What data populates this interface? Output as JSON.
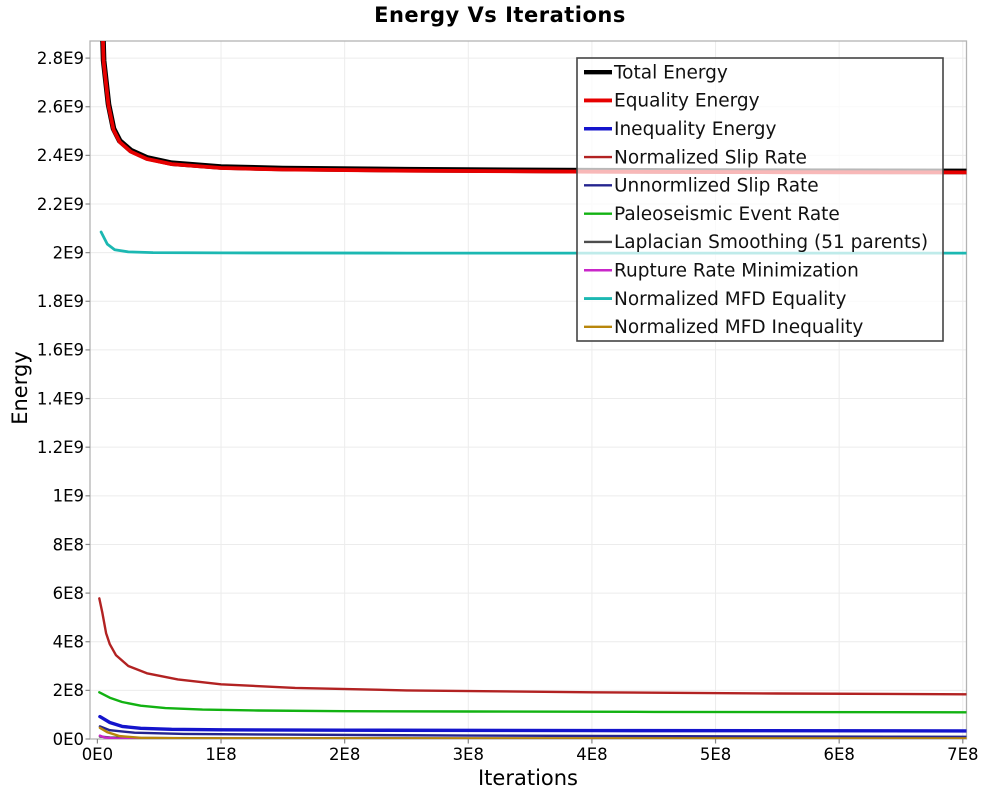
{
  "chart_data": {
    "type": "line",
    "title": "Energy Vs Iterations",
    "xlabel": "Iterations",
    "ylabel": "Energy",
    "xlim": [
      0,
      705000000
    ],
    "ylim": [
      0,
      2870000000
    ],
    "grid": true,
    "grid_color": "#ececec",
    "axis_border_color": "#b3b3b3",
    "tick_color": "#888888",
    "tick_label_color": "#000000",
    "legend": {
      "position": "top-right-inside",
      "border_color": "#444444",
      "background": "rgba(255,255,255,0.72)",
      "text_color": "#111111"
    },
    "x_ticks": [
      {
        "value": 0,
        "label": "0E0"
      },
      {
        "value": 100000000.0,
        "label": "1E8"
      },
      {
        "value": 200000000.0,
        "label": "2E8"
      },
      {
        "value": 300000000.0,
        "label": "3E8"
      },
      {
        "value": 400000000.0,
        "label": "4E8"
      },
      {
        "value": 500000000.0,
        "label": "5E8"
      },
      {
        "value": 600000000.0,
        "label": "6E8"
      },
      {
        "value": 700000000.0,
        "label": "7E8"
      }
    ],
    "y_ticks": [
      {
        "value": 0,
        "label": "0E0"
      },
      {
        "value": 200000000.0,
        "label": "2E8"
      },
      {
        "value": 400000000.0,
        "label": "4E8"
      },
      {
        "value": 600000000.0,
        "label": "6E8"
      },
      {
        "value": 800000000.0,
        "label": "8E8"
      },
      {
        "value": 1000000000.0,
        "label": "1E9"
      },
      {
        "value": 1200000000.0,
        "label": "1.2E9"
      },
      {
        "value": 1400000000.0,
        "label": "1.4E9"
      },
      {
        "value": 1600000000.0,
        "label": "1.6E9"
      },
      {
        "value": 1800000000.0,
        "label": "1.8E9"
      },
      {
        "value": 2000000000.0,
        "label": "2E9"
      },
      {
        "value": 2200000000.0,
        "label": "2.2E9"
      },
      {
        "value": 2400000000.0,
        "label": "2.4E9"
      },
      {
        "value": 2600000000.0,
        "label": "2.6E9"
      },
      {
        "value": 2800000000.0,
        "label": "2.8E9"
      }
    ],
    "series": [
      {
        "name": "Total Energy",
        "color": "#000000",
        "line_width": 5.6,
        "x": [
          2000000.0,
          5000000.0,
          9000000.0,
          13000000.0,
          18000000.0,
          27000000.0,
          40000000.0,
          60000000.0,
          100000000.0,
          150000000.0,
          250000000.0,
          400000000.0,
          550000000.0,
          705000000.0
        ],
        "y": [
          3300000000.0,
          2790000000.0,
          2610000000.0,
          2510000000.0,
          2460000000.0,
          2420000000.0,
          2390000000.0,
          2368000000.0,
          2352000000.0,
          2346000000.0,
          2341000000.0,
          2337000000.0,
          2335000000.0,
          2334000000.0
        ]
      },
      {
        "name": "Equality Energy",
        "color": "#e60000",
        "line_width": 3.8,
        "x": [
          2000000.0,
          5000000.0,
          9000000.0,
          13000000.0,
          18000000.0,
          27000000.0,
          40000000.0,
          60000000.0,
          100000000.0,
          150000000.0,
          250000000.0,
          400000000.0,
          550000000.0,
          705000000.0
        ],
        "y": [
          3290000000.0,
          2785000000.0,
          2605000000.0,
          2505000000.0,
          2455000000.0,
          2415000000.0,
          2385000000.0,
          2364000000.0,
          2348000000.0,
          2342000000.0,
          2337000000.0,
          2333000000.0,
          2331000000.0,
          2330000000.0
        ]
      },
      {
        "name": "Inequality Energy",
        "color": "#1414cc",
        "line_width": 3.4,
        "x": [
          2000000.0,
          10000000.0,
          20000000.0,
          35000000.0,
          60000000.0,
          100000000.0,
          200000000.0,
          400000000.0,
          705000000.0
        ],
        "y": [
          92000000.0,
          68000000.0,
          52000000.0,
          44000000.0,
          40000000.0,
          38000000.0,
          36000000.0,
          34500000.0,
          33500000.0
        ]
      },
      {
        "name": "Normalized Slip Rate",
        "color": "#b22222",
        "line_width": 2.4,
        "x": [
          1500000.0,
          4000000.0,
          7000000.0,
          10000000.0,
          15000000.0,
          25000000.0,
          40000000.0,
          65000000.0,
          100000000.0,
          160000000.0,
          250000000.0,
          400000000.0,
          550000000.0,
          705000000.0
        ],
        "y": [
          578000000.0,
          520000000.0,
          435000000.0,
          390000000.0,
          345000000.0,
          300000000.0,
          270000000.0,
          245000000.0,
          225000000.0,
          210000000.0,
          200000000.0,
          192000000.0,
          187000000.0,
          184000000.0
        ]
      },
      {
        "name": "Unnormlized Slip Rate",
        "color": "#24248f",
        "line_width": 2.4,
        "x": [
          2000000.0,
          10000000.0,
          30000000.0,
          70000000.0,
          150000000.0,
          300000000.0,
          500000000.0,
          705000000.0
        ],
        "y": [
          52000000.0,
          36000000.0,
          26000000.0,
          21000000.0,
          18000000.0,
          14000000.0,
          11000000.0,
          9000000.0
        ]
      },
      {
        "name": "Paleoseismic Event Rate",
        "color": "#12b212",
        "line_width": 2.4,
        "x": [
          1500000.0,
          10000000.0,
          20000000.0,
          35000000.0,
          55000000.0,
          85000000.0,
          130000000.0,
          200000000.0,
          300000000.0,
          450000000.0,
          705000000.0
        ],
        "y": [
          192000000.0,
          170000000.0,
          152000000.0,
          137000000.0,
          127000000.0,
          121000000.0,
          117000000.0,
          114500000.0,
          113000000.0,
          111500000.0,
          110000000.0
        ]
      },
      {
        "name": "Laplacian Smoothing (51 parents)",
        "color": "#4d4d4d",
        "line_width": 2.4,
        "x": [
          2000000.0,
          10000000.0,
          30000000.0,
          100000000.0,
          300000000.0,
          705000000.0
        ],
        "y": [
          10000000.0,
          6000000.0,
          4000000.0,
          3000000.0,
          2500000.0,
          2500000.0
        ]
      },
      {
        "name": "Rupture Rate Minimization",
        "color": "#c926c9",
        "line_width": 2.4,
        "x": [
          2000000.0,
          6000000.0,
          15000000.0,
          40000000.0,
          100000000.0,
          705000000.0
        ],
        "y": [
          14000000.0,
          6000000.0,
          2500000.0,
          1000000.0,
          800000.0,
          800000.0
        ]
      },
      {
        "name": "Normalized MFD Equality",
        "color": "#1cb8b2",
        "line_width": 2.8,
        "x": [
          3000000.0,
          8000000.0,
          14000000.0,
          25000000.0,
          45000000.0,
          100000000.0,
          250000000.0,
          705000000.0
        ],
        "y": [
          2085000000.0,
          2035000000.0,
          2012000000.0,
          2003000000.0,
          2000000000.0,
          1999000000.0,
          1998000000.0,
          1998000000.0
        ]
      },
      {
        "name": "Normalized MFD Inequality",
        "color": "#b8860b",
        "line_width": 2.4,
        "x": [
          2000000.0,
          8000000.0,
          18000000.0,
          35000000.0,
          70000000.0,
          200000000.0,
          705000000.0
        ],
        "y": [
          46000000.0,
          28000000.0,
          12000000.0,
          5000000.0,
          3000000.0,
          2500000.0,
          2000000.0
        ]
      }
    ]
  }
}
